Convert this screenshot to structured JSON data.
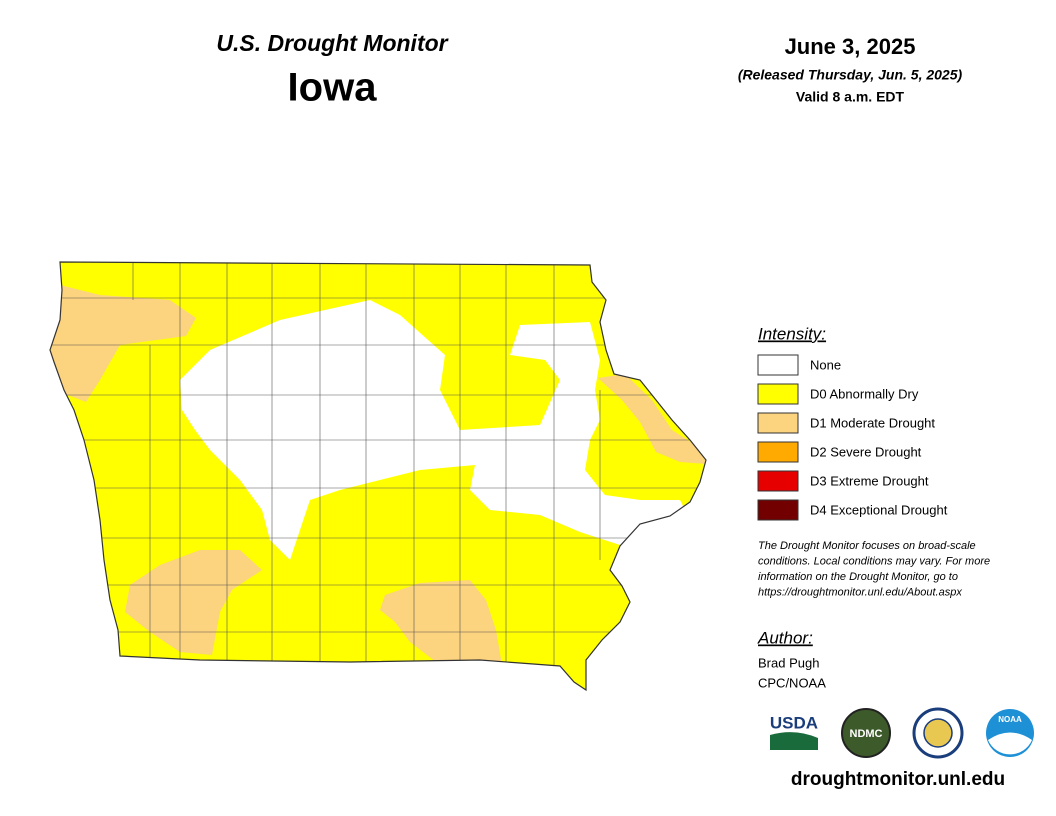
{
  "header": {
    "subtitle": "U.S. Drought Monitor",
    "title": "Iowa",
    "date": "June 3, 2025",
    "released": "(Released Thursday, Jun. 5, 2025)",
    "valid": "Valid 8 a.m. EDT"
  },
  "legend": {
    "title": "Intensity:",
    "items": [
      {
        "label": "None",
        "color": "#ffffff"
      },
      {
        "label": "D0 Abnormally Dry",
        "color": "#ffff00"
      },
      {
        "label": "D1 Moderate Drought",
        "color": "#fcd37f"
      },
      {
        "label": "D2 Severe Drought",
        "color": "#ffaa00"
      },
      {
        "label": "D3 Extreme Drought",
        "color": "#e60000"
      },
      {
        "label": "D4 Exceptional Drought",
        "color": "#730000"
      }
    ]
  },
  "note": [
    "The Drought Monitor focuses on broad-scale",
    "conditions. Local conditions may vary. For more",
    "information on the Drought Monitor, go to",
    "https://droughtmonitor.unl.edu/About.aspx"
  ],
  "author": {
    "title": "Author:",
    "lines": [
      "Brad Pugh",
      "CPC/NOAA"
    ]
  },
  "logos": [
    "USDA",
    "NDMC",
    "NOAA"
  ],
  "url": "droughtmonitor.unl.edu"
}
